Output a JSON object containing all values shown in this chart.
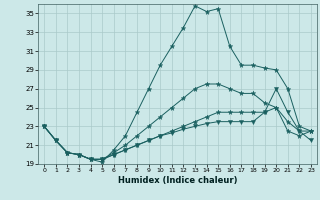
{
  "xlabel": "Humidex (Indice chaleur)",
  "bg_color": "#cce8e8",
  "grid_color": "#aacaca",
  "line_color": "#1a6060",
  "xlim": [
    -0.5,
    23.5
  ],
  "ylim": [
    19,
    36
  ],
  "yticks": [
    19,
    21,
    23,
    25,
    27,
    29,
    31,
    33,
    35
  ],
  "xticks": [
    0,
    1,
    2,
    3,
    4,
    5,
    6,
    7,
    8,
    9,
    10,
    11,
    12,
    13,
    14,
    15,
    16,
    17,
    18,
    19,
    20,
    21,
    22,
    23
  ],
  "series": [
    [
      23.0,
      21.5,
      20.2,
      20.0,
      19.5,
      19.2,
      20.5,
      22.0,
      24.5,
      27.0,
      29.5,
      31.5,
      33.5,
      35.8,
      35.2,
      35.5,
      31.5,
      29.5,
      29.5,
      29.2,
      29.0,
      27.0,
      23.0,
      22.5
    ],
    [
      23.0,
      21.5,
      20.2,
      20.0,
      19.5,
      19.5,
      20.2,
      21.0,
      22.0,
      23.0,
      24.0,
      25.0,
      26.0,
      27.0,
      27.5,
      27.5,
      27.0,
      26.5,
      26.5,
      25.5,
      25.0,
      22.5,
      22.0,
      22.5
    ],
    [
      23.0,
      21.5,
      20.2,
      20.0,
      19.5,
      19.5,
      20.0,
      20.5,
      21.0,
      21.5,
      22.0,
      22.5,
      23.0,
      23.5,
      24.0,
      24.5,
      24.5,
      24.5,
      24.5,
      24.5,
      25.0,
      23.5,
      22.5,
      22.5
    ],
    [
      23.0,
      21.5,
      20.2,
      20.0,
      19.5,
      19.5,
      20.0,
      20.5,
      21.0,
      21.5,
      22.0,
      22.3,
      22.7,
      23.0,
      23.3,
      23.5,
      23.5,
      23.5,
      23.5,
      24.5,
      27.0,
      24.5,
      22.5,
      21.5
    ]
  ],
  "marker_styles": [
    "*",
    "*",
    "*",
    "v"
  ]
}
